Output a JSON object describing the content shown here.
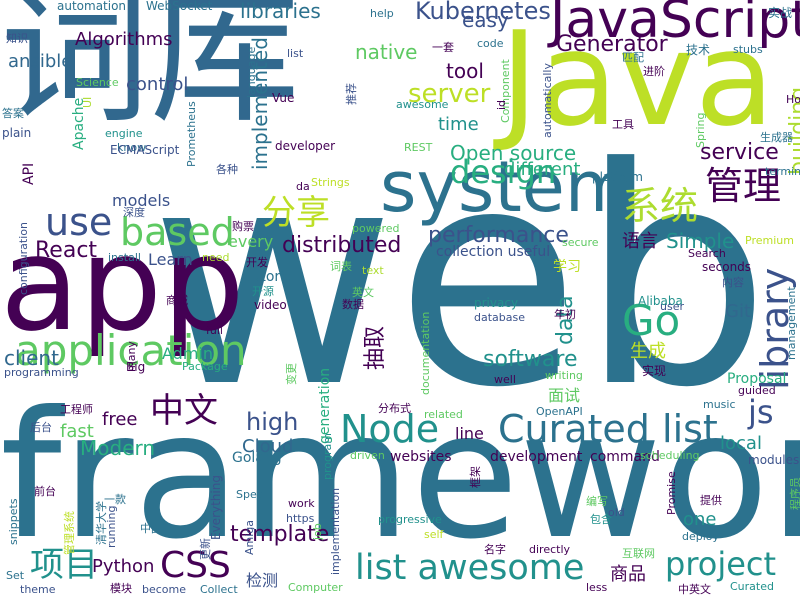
{
  "palette": {
    "purple_dark": "#440154",
    "indigo": "#3b528b",
    "blue": "#31688e",
    "steel": "#2c728e",
    "teal": "#21918c",
    "teal_green": "#28ae80",
    "green": "#5ec962",
    "lime": "#addc30",
    "yellow_green": "#bddf26"
  },
  "words": [
    {
      "text": "web",
      "color": "#2c728e"
    },
    {
      "text": "framework",
      "color": "#2c728e"
    },
    {
      "text": "Java",
      "color": "#bddf26"
    },
    {
      "text": "app",
      "color": "#440154"
    },
    {
      "text": "词库",
      "color": "#31688e"
    },
    {
      "text": "system",
      "color": "#2c728e"
    },
    {
      "text": "JavaScript",
      "color": "#440154"
    },
    {
      "text": "application",
      "color": "#5ec962"
    },
    {
      "text": "Curated list",
      "color": "#2c728e"
    },
    {
      "text": "list awesome",
      "color": "#21918c"
    },
    {
      "text": "Node",
      "color": "#21918c"
    },
    {
      "text": "Go",
      "color": "#28ae80"
    },
    {
      "text": "design",
      "color": "#28ae80"
    },
    {
      "text": "based",
      "color": "#5ec962"
    },
    {
      "text": "use",
      "color": "#3b528b"
    },
    {
      "text": "library",
      "color": "#3b528b"
    },
    {
      "text": "系统",
      "color": "#addc30"
    },
    {
      "text": "管理",
      "color": "#440154"
    },
    {
      "text": "中文",
      "color": "#440154"
    },
    {
      "text": "分享",
      "color": "#bddf26"
    },
    {
      "text": "CSS",
      "color": "#440154"
    },
    {
      "text": "项目",
      "color": "#21918c"
    },
    {
      "text": "project",
      "color": "#21918c"
    },
    {
      "text": "js",
      "color": "#3b528b"
    },
    {
      "text": "Kubernetes",
      "color": "#3b528b"
    },
    {
      "text": "Generator",
      "color": "#440154"
    },
    {
      "text": "server",
      "color": "#bddf26"
    },
    {
      "text": "Open source",
      "color": "#28ae80"
    },
    {
      "text": "service",
      "color": "#440154"
    },
    {
      "text": "distributed",
      "color": "#440154"
    },
    {
      "text": "performance",
      "color": "#3b528b"
    },
    {
      "text": "high",
      "color": "#3b528b"
    },
    {
      "text": "template",
      "color": "#440154"
    },
    {
      "text": "React",
      "color": "#440154"
    },
    {
      "text": "Modern",
      "color": "#28ae80"
    },
    {
      "text": "Simple",
      "color": "#21918c"
    },
    {
      "text": "software",
      "color": "#21918c"
    },
    {
      "text": "data",
      "color": "#21918c"
    },
    {
      "text": "building",
      "color": "#addc30"
    },
    {
      "text": "implemented",
      "color": "#2c728e"
    },
    {
      "text": "libraries",
      "color": "#2c728e"
    },
    {
      "text": "easy",
      "color": "#3b528b"
    },
    {
      "text": "tool",
      "color": "#440154"
    },
    {
      "text": "time",
      "color": "#21918c"
    },
    {
      "text": "different",
      "color": "#28ae80"
    },
    {
      "text": "native",
      "color": "#5ec962"
    },
    {
      "text": "Algorithms",
      "color": "#440154"
    },
    {
      "text": "control",
      "color": "#3b528b"
    },
    {
      "text": "ansible",
      "color": "#31688e"
    },
    {
      "text": "models",
      "color": "#3b528b"
    },
    {
      "text": "client",
      "color": "#31688e"
    },
    {
      "text": "抽取",
      "color": "#440154"
    },
    {
      "text": "语言",
      "color": "#440154"
    },
    {
      "text": "Python",
      "color": "#440154"
    },
    {
      "text": "Cloud",
      "color": "#31688e"
    },
    {
      "text": "fast",
      "color": "#5ec962"
    },
    {
      "text": "free",
      "color": "#440154"
    },
    {
      "text": "Admin",
      "color": "#28ae80"
    },
    {
      "text": "line",
      "color": "#440154"
    },
    {
      "text": "local",
      "color": "#21918c"
    },
    {
      "text": "one",
      "color": "#21918c"
    },
    {
      "text": "商品",
      "color": "#440154"
    },
    {
      "text": "Git",
      "color": "#31688e"
    },
    {
      "text": "生成",
      "color": "#bddf26"
    },
    {
      "text": "面试",
      "color": "#5ec962"
    },
    {
      "text": "学习",
      "color": "#bddf26"
    },
    {
      "text": "Learn",
      "color": "#3b528b"
    },
    {
      "text": "every",
      "color": "#5ec962"
    },
    {
      "text": "tutorial",
      "color": "#2c728e"
    },
    {
      "text": "Apache",
      "color": "#28ae80"
    },
    {
      "text": "API",
      "color": "#440154"
    },
    {
      "text": "检测",
      "color": "#3b528b"
    },
    {
      "text": "Golang",
      "color": "#2c728e"
    },
    {
      "text": "generation",
      "color": "#28ae80"
    },
    {
      "text": "development",
      "color": "#440154"
    },
    {
      "text": "command",
      "color": "#440154"
    },
    {
      "text": "websites",
      "color": "#440154"
    },
    {
      "text": "Proposal",
      "color": "#28ae80"
    },
    {
      "text": "collection useful",
      "color": "#3b528b"
    },
    {
      "text": "Everything",
      "color": "#3b528b"
    },
    {
      "text": "automation",
      "color": "#2c728e"
    },
    {
      "text": "WebSocket",
      "color": "#2c728e"
    },
    {
      "text": "help",
      "color": "#2c728e"
    },
    {
      "text": "实战",
      "color": "#2c728e"
    },
    {
      "text": "知识",
      "color": "#3b528b"
    },
    {
      "text": "code",
      "color": "#2c728e"
    },
    {
      "text": "一套",
      "color": "#440154"
    },
    {
      "text": "技术",
      "color": "#2c728e"
    },
    {
      "text": "匹配",
      "color": "#2c728e"
    },
    {
      "text": "stubs",
      "color": "#2c728e"
    },
    {
      "text": "list",
      "color": "#3b528b"
    },
    {
      "text": "进阶",
      "color": "#440154"
    },
    {
      "text": "Science",
      "color": "#5ec962"
    },
    {
      "text": "UI",
      "color": "#addc30"
    },
    {
      "text": "Prometheus",
      "color": "#2c728e"
    },
    {
      "text": "Vue",
      "color": "#440154"
    },
    {
      "text": "awesome",
      "color": "#21918c"
    },
    {
      "text": "答案",
      "color": "#2c728e"
    },
    {
      "text": "plain",
      "color": "#3b528b"
    },
    {
      "text": "engine",
      "color": "#21918c"
    },
    {
      "text": "know",
      "color": "#2c728e"
    },
    {
      "text": "developer",
      "color": "#440154"
    },
    {
      "text": "REST",
      "color": "#5ec962"
    },
    {
      "text": "工具",
      "color": "#440154"
    },
    {
      "text": "生成器",
      "color": "#2c728e"
    },
    {
      "text": "ECMAScript",
      "color": "#3b528b"
    },
    {
      "text": "各种",
      "color": "#3b528b"
    },
    {
      "text": "platform",
      "color": "#2c728e"
    },
    {
      "text": "terminal",
      "color": "#2c728e"
    },
    {
      "text": "da",
      "color": "#440154"
    },
    {
      "text": "Strings",
      "color": "#bddf26"
    },
    {
      "text": "深度",
      "color": "#3b528b"
    },
    {
      "text": "购票",
      "color": "#440154"
    },
    {
      "text": "powered",
      "color": "#5ec962"
    },
    {
      "text": "secure",
      "color": "#5ec962"
    },
    {
      "text": "Premium",
      "color": "#bddf26"
    },
    {
      "text": "configuration",
      "color": "#3b528b"
    },
    {
      "text": "install",
      "color": "#2c728e"
    },
    {
      "text": "need",
      "color": "#addc30"
    },
    {
      "text": "开发",
      "color": "#440154"
    },
    {
      "text": "词表",
      "color": "#5ec962"
    },
    {
      "text": "text",
      "color": "#addc30"
    },
    {
      "text": "Search",
      "color": "#440154"
    },
    {
      "text": "seconds",
      "color": "#440154"
    },
    {
      "text": "内容",
      "color": "#3b528b"
    },
    {
      "text": "商城",
      "color": "#440154"
    },
    {
      "text": "开源",
      "color": "#21918c"
    },
    {
      "text": "video",
      "color": "#440154"
    },
    {
      "text": "数据",
      "color": "#440154"
    },
    {
      "text": "英文",
      "color": "#5ec962"
    },
    {
      "text": "年初",
      "color": "#440154"
    },
    {
      "text": "Alibaba",
      "color": "#21918c"
    },
    {
      "text": "user",
      "color": "#3b528b"
    },
    {
      "text": "privacy",
      "color": "#21918c"
    },
    {
      "text": "database",
      "color": "#3b528b"
    },
    {
      "text": "full",
      "color": "#440154"
    },
    {
      "text": "many",
      "color": "#440154"
    },
    {
      "text": "Big",
      "color": "#440154"
    },
    {
      "text": "Package",
      "color": "#28ae80"
    },
    {
      "text": "programming",
      "color": "#3b528b"
    },
    {
      "text": "实现",
      "color": "#440154"
    },
    {
      "text": "well",
      "color": "#440154"
    },
    {
      "text": "writing",
      "color": "#5ec962"
    },
    {
      "text": "music",
      "color": "#2c728e"
    },
    {
      "text": "guided",
      "color": "#440154"
    },
    {
      "text": "management",
      "color": "#2c728e"
    },
    {
      "text": "工程师",
      "color": "#440154"
    },
    {
      "text": "分布式",
      "color": "#440154"
    },
    {
      "text": "related",
      "color": "#5ec962"
    },
    {
      "text": "OpenAPI",
      "color": "#2c728e"
    },
    {
      "text": "后台",
      "color": "#3b528b"
    },
    {
      "text": "driven",
      "color": "#5ec962"
    },
    {
      "text": "scheduling",
      "color": "#5ec962"
    },
    {
      "text": "modules",
      "color": "#3b528b"
    },
    {
      "text": "前台",
      "color": "#440154"
    },
    {
      "text": "框架",
      "color": "#440154"
    },
    {
      "text": "Promise",
      "color": "#440154"
    },
    {
      "text": "一款",
      "color": "#2c728e"
    },
    {
      "text": "编写",
      "color": "#5ec962"
    },
    {
      "text": "old",
      "color": "#3b528b"
    },
    {
      "text": "提供",
      "color": "#440154"
    },
    {
      "text": "snippets",
      "color": "#2c728e"
    },
    {
      "text": "Spec",
      "color": "#2c728e"
    },
    {
      "text": "work",
      "color": "#440154"
    },
    {
      "text": "https",
      "color": "#3b528b"
    },
    {
      "text": "job",
      "color": "#5ec962"
    },
    {
      "text": "progressive",
      "color": "#21918c"
    },
    {
      "text": "包含",
      "color": "#21918c"
    },
    {
      "text": "deploy",
      "color": "#2c728e"
    },
    {
      "text": "中国",
      "color": "#2c728e"
    },
    {
      "text": "清华大学",
      "color": "#2c728e"
    },
    {
      "text": "running",
      "color": "#3b528b"
    },
    {
      "text": "Amiga",
      "color": "#3b528b"
    },
    {
      "text": "self",
      "color": "#bddf26"
    },
    {
      "text": "名字",
      "color": "#440154"
    },
    {
      "text": "directly",
      "color": "#440154"
    },
    {
      "text": "互联网",
      "color": "#5ec962"
    },
    {
      "text": "Set",
      "color": "#2c728e"
    },
    {
      "text": "theme",
      "color": "#3b528b"
    },
    {
      "text": "模块",
      "color": "#440154"
    },
    {
      "text": "become",
      "color": "#3b528b"
    },
    {
      "text": "Collect",
      "color": "#2c728e"
    },
    {
      "text": "Computer",
      "color": "#5ec962"
    },
    {
      "text": "less",
      "color": "#440154"
    },
    {
      "text": "中英文",
      "color": "#440154"
    },
    {
      "text": "Curated",
      "color": "#21918c"
    },
    {
      "text": "Spring",
      "color": "#5ec962"
    },
    {
      "text": "Component",
      "color": "#5ec962"
    },
    {
      "text": "automatically",
      "color": "#3b528b"
    },
    {
      "text": "language",
      "color": "#2c728e"
    },
    {
      "text": "推荐",
      "color": "#3b528b"
    },
    {
      "text": "id",
      "color": "#440154"
    },
    {
      "text": "Ho",
      "color": "#440154"
    },
    {
      "text": "implementation",
      "color": "#3b528b"
    },
    {
      "text": "program",
      "color": "#21918c"
    },
    {
      "text": "documentation",
      "color": "#5ec962"
    },
    {
      "text": "程序员",
      "color": "#5ec962"
    },
    {
      "text": "变更",
      "color": "#5ec962"
    },
    {
      "text": "更新",
      "color": "#3b528b"
    },
    {
      "text": "管理系统",
      "color": "#bddf26"
    }
  ]
}
